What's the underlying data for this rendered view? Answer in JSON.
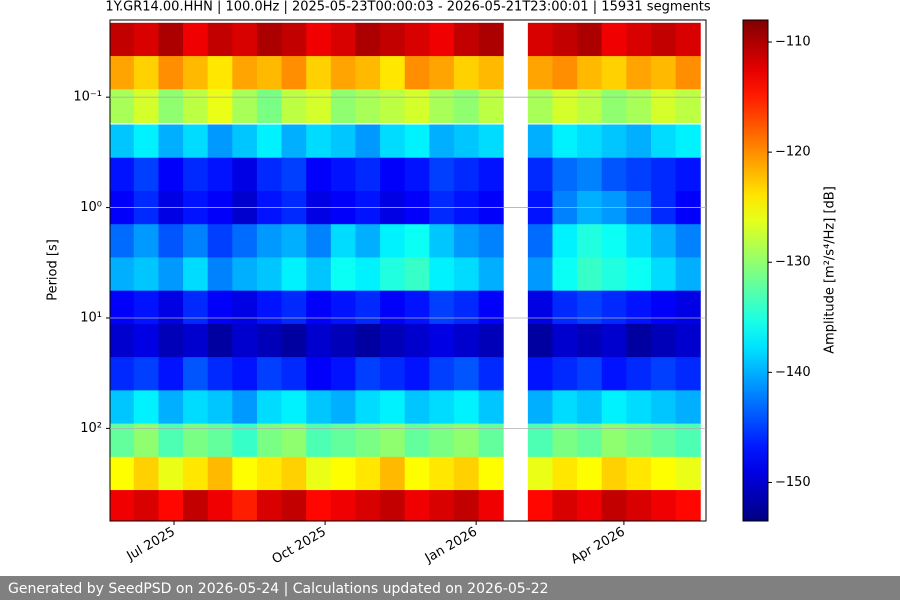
{
  "chart_data": {
    "type": "heatmap",
    "title": "1Y.GR14.00.HHN | 100.0Hz | 2025-05-23T00:00:03 - 2026-05-21T23:00:01 | 15931 segments",
    "y_label": "Period [s]",
    "colorbar_label": "Amplitude [m²/s⁴/Hz] [dB]",
    "colormap": "jet",
    "xlim": [
      "2025-05-23",
      "2026-05-21"
    ],
    "xticks": [
      {
        "value": "2025-07-01",
        "label": "Jul 2025"
      },
      {
        "value": "2025-10-01",
        "label": "Oct 2025"
      },
      {
        "value": "2026-01-01",
        "label": "Jan 2026"
      },
      {
        "value": "2026-04-01",
        "label": "Apr 2026"
      }
    ],
    "ylim": [
      0.02,
      690
    ],
    "y_log": true,
    "y_inverted": true,
    "yticks": [
      {
        "value": 0.1,
        "label": "10⁻¹"
      },
      {
        "value": 1,
        "label": "10⁰"
      },
      {
        "value": 10,
        "label": "10¹"
      },
      {
        "value": 100,
        "label": "10²"
      }
    ],
    "grid": true,
    "clim": [
      -153.5,
      -108
    ],
    "cticks": [
      {
        "value": -110,
        "label": "−110"
      },
      {
        "value": -120,
        "label": "−120"
      },
      {
        "value": -130,
        "label": "−130"
      },
      {
        "value": -140,
        "label": "−140"
      },
      {
        "value": -150,
        "label": "−150"
      }
    ],
    "x": [
      "2025-05-30",
      "2025-06-14",
      "2025-06-29",
      "2025-07-14",
      "2025-07-29",
      "2025-08-13",
      "2025-08-28",
      "2025-09-12",
      "2025-09-27",
      "2025-10-12",
      "2025-10-27",
      "2025-11-11",
      "2025-11-26",
      "2025-12-11",
      "2025-12-26",
      "2026-01-10",
      "2026-01-25",
      "2026-02-09",
      "2026-02-24",
      "2026-03-11",
      "2026-03-26",
      "2026-04-10",
      "2026-04-25",
      "2026-05-10"
    ],
    "y": [
      0.03,
      0.06,
      0.12,
      0.25,
      0.5,
      1,
      2,
      4,
      8,
      16,
      32,
      64,
      128,
      256,
      512
    ],
    "z": [
      [
        -111,
        -112,
        -110,
        -113,
        -111,
        -112,
        -110,
        -111,
        -113,
        -112,
        -110,
        -111,
        -112,
        -113,
        -111,
        -110,
        null,
        -112,
        -111,
        -110,
        -113,
        -112,
        -111,
        -112
      ],
      [
        -121,
        -123,
        -120,
        -122,
        -124,
        -121,
        -122,
        -120,
        -123,
        -121,
        -122,
        -124,
        -120,
        -121,
        -123,
        -122,
        null,
        -121,
        -120,
        -122,
        -123,
        -121,
        -122,
        -120
      ],
      [
        -129,
        -127,
        -130,
        -128,
        -126,
        -129,
        -131,
        -128,
        -127,
        -130,
        -129,
        -128,
        -127,
        -129,
        -130,
        -128,
        null,
        -129,
        -127,
        -128,
        -130,
        -129,
        -127,
        -128
      ],
      [
        -139,
        -137,
        -140,
        -138,
        -141,
        -139,
        -137,
        -140,
        -138,
        -139,
        -141,
        -138,
        -137,
        -140,
        -139,
        -138,
        null,
        -140,
        -137,
        -138,
        -139,
        -140,
        -138,
        -137
      ],
      [
        -147,
        -145,
        -148,
        -146,
        -147,
        -149,
        -146,
        -145,
        -148,
        -147,
        -146,
        -148,
        -147,
        -145,
        -146,
        -147,
        null,
        -146,
        -143,
        -142,
        -144,
        -145,
        -146,
        -147
      ],
      [
        -148,
        -146,
        -149,
        -147,
        -148,
        -150,
        -147,
        -146,
        -149,
        -148,
        -147,
        -149,
        -148,
        -146,
        -147,
        -148,
        null,
        -147,
        -142,
        -140,
        -141,
        -143,
        -146,
        -148
      ],
      [
        -143,
        -141,
        -144,
        -142,
        -145,
        -143,
        -141,
        -140,
        -142,
        -138,
        -140,
        -137,
        -136,
        -139,
        -141,
        -142,
        null,
        -143,
        -137,
        -135,
        -136,
        -138,
        -140,
        -142
      ],
      [
        -140,
        -139,
        -141,
        -138,
        -142,
        -140,
        -139,
        -137,
        -139,
        -136,
        -137,
        -135,
        -134,
        -137,
        -138,
        -140,
        null,
        -141,
        -136,
        -134,
        -135,
        -136,
        -138,
        -140
      ],
      [
        -148,
        -147,
        -149,
        -146,
        -148,
        -149,
        -147,
        -146,
        -148,
        -147,
        -146,
        -148,
        -147,
        -145,
        -146,
        -148,
        null,
        -149,
        -146,
        -145,
        -146,
        -147,
        -148,
        -149
      ],
      [
        -150,
        -149,
        -151,
        -150,
        -152,
        -150,
        -151,
        -152,
        -150,
        -151,
        -152,
        -151,
        -150,
        -149,
        -150,
        -151,
        null,
        -152,
        -150,
        -151,
        -150,
        -152,
        -151,
        -150
      ],
      [
        -146,
        -145,
        -147,
        -144,
        -146,
        -147,
        -145,
        -146,
        -148,
        -147,
        -145,
        -146,
        -147,
        -145,
        -144,
        -146,
        null,
        -147,
        -146,
        -145,
        -147,
        -146,
        -145,
        -146
      ],
      [
        -139,
        -137,
        -140,
        -138,
        -139,
        -141,
        -138,
        -137,
        -139,
        -140,
        -138,
        -137,
        -139,
        -138,
        -137,
        -139,
        null,
        -140,
        -138,
        -139,
        -137,
        -138,
        -139,
        -140
      ],
      [
        -132,
        -130,
        -133,
        -131,
        -132,
        -134,
        -131,
        -130,
        -133,
        -132,
        -131,
        -130,
        -132,
        -131,
        -130,
        -132,
        null,
        -133,
        -131,
        -132,
        -130,
        -131,
        -132,
        -133
      ],
      [
        -125,
        -123,
        -126,
        -124,
        -122,
        -125,
        -124,
        -123,
        -126,
        -125,
        -124,
        -122,
        -125,
        -124,
        -123,
        -125,
        null,
        -126,
        -124,
        -125,
        -123,
        -124,
        -125,
        -126
      ],
      [
        -113,
        -112,
        -114,
        -111,
        -113,
        -115,
        -112,
        -111,
        -114,
        -113,
        -112,
        -111,
        -113,
        -112,
        -111,
        -113,
        null,
        -114,
        -112,
        -113,
        -111,
        -112,
        -113,
        -114
      ]
    ]
  },
  "footer": "Generated by SeedPSD on 2026-05-24 | Calculations updated on 2026-05-22"
}
